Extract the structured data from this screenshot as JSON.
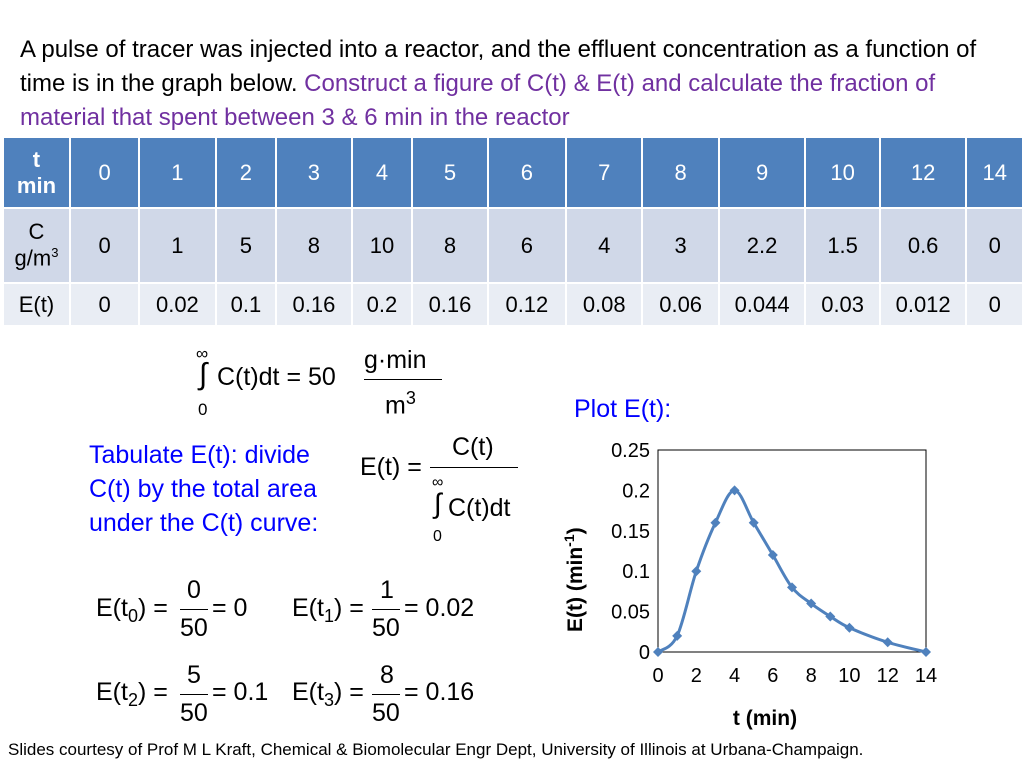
{
  "intro": {
    "black": "A pulse of tracer was injected into a reactor, and the effluent concentration as a function of time is in the graph below. ",
    "purple": "Construct a figure of C(t) & E(t) and calculate the fraction of material that spent between 3 & 6 min in the reactor"
  },
  "table": {
    "header": {
      "label_top": "t",
      "label_bottom": "min",
      "values": [
        "0",
        "1",
        "2",
        "3",
        "4",
        "5",
        "6",
        "7",
        "8",
        "9",
        "10",
        "12",
        "14"
      ]
    },
    "c_row": {
      "label_top": "C",
      "label_bottom": "g/m",
      "label_sup": "3",
      "values": [
        "0",
        "1",
        "5",
        "8",
        "10",
        "8",
        "6",
        "4",
        "3",
        "2.2",
        "1.5",
        "0.6",
        "0"
      ]
    },
    "e_row": {
      "label": "E(t)",
      "values": [
        "0",
        "0.02",
        "0.1",
        "0.16",
        "0.2",
        "0.16",
        "0.12",
        "0.08",
        "0.06",
        "0.044",
        "0.03",
        "0.012",
        "0"
      ]
    }
  },
  "integral_eq": {
    "upper": "∞",
    "lower": "0",
    "integrand": "C(t)dt = 50",
    "num": "g·min",
    "den": "m",
    "den_sup": "3"
  },
  "tabulate_text": {
    "line1": "Tabulate E(t): divide",
    "line2": "C(t) by the total area",
    "line3": "under the C(t) curve:"
  },
  "e_def": {
    "lhs": "E(t) =",
    "num": "C(t)",
    "upper": "∞",
    "lower": "0",
    "den": "C(t)dt"
  },
  "examples": [
    {
      "lhs": "E(t",
      "sub": "0",
      "num": "0",
      "den": "50",
      "rhs": "= 0"
    },
    {
      "lhs": "E(t",
      "sub": "1",
      "num": "1",
      "den": "50",
      "rhs": "= 0.02"
    },
    {
      "lhs": "E(t",
      "sub": "2",
      "num": "5",
      "den": "50",
      "rhs": "= 0.1"
    },
    {
      "lhs": "E(t",
      "sub": "3",
      "num": "8",
      "den": "50",
      "rhs": "= 0.16"
    }
  ],
  "plot_label": "Plot E(t):",
  "chart_data": {
    "type": "line",
    "x": [
      0,
      1,
      2,
      3,
      4,
      5,
      6,
      7,
      8,
      9,
      10,
      12,
      14
    ],
    "series": [
      {
        "values": [
          0,
          0.02,
          0.1,
          0.16,
          0.2,
          0.16,
          0.12,
          0.08,
          0.06,
          0.044,
          0.03,
          0.012,
          0
        ]
      }
    ],
    "xlabel": "t (min)",
    "ylabel_main": "E(t) (min",
    "ylabel_sup": "-1",
    "ylabel_end": ")",
    "xlim": [
      0,
      14
    ],
    "ylim": [
      0,
      0.25
    ],
    "xticks": [
      0,
      2,
      4,
      6,
      8,
      10,
      12,
      14
    ],
    "xtick_labels": [
      "0",
      "2",
      "4",
      "6",
      "8",
      "10",
      "12",
      "14"
    ],
    "yticks": [
      0,
      0.05,
      0.1,
      0.15,
      0.2,
      0.25
    ],
    "ytick_labels": [
      "0",
      "0.05",
      "0.1",
      "0.15",
      "0.2",
      "0.25"
    ],
    "line_color": "#4f81bd",
    "marker_color": "#4f81bd",
    "grid": false
  },
  "credit": "Slides courtesy of Prof M L Kraft, Chemical & Biomolecular Engr Dept, University of Illinois at Urbana-Champaign."
}
